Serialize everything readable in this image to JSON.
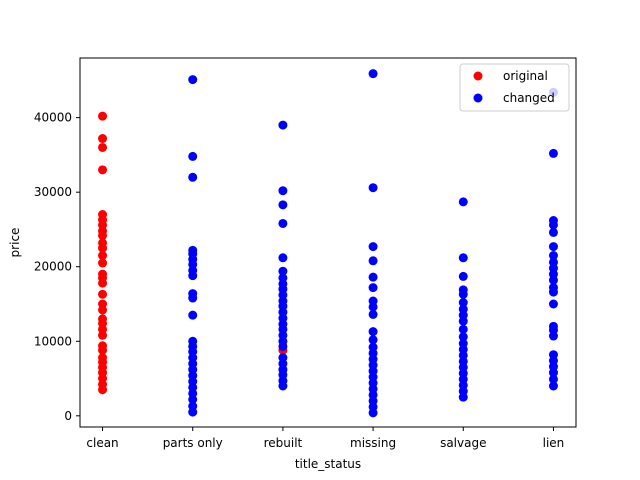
{
  "chart_data": {
    "type": "scatter",
    "xlabel": "title_status",
    "ylabel": "price",
    "categories": [
      "clean",
      "parts only",
      "rebuilt",
      "missing",
      "salvage",
      "lien"
    ],
    "ylim": [
      -1500,
      48000
    ],
    "yticks": [
      0,
      10000,
      20000,
      30000,
      40000
    ],
    "ytick_labels": [
      "0",
      "10000",
      "20000",
      "30000",
      "40000"
    ],
    "grid": false,
    "legend_position": "top-right",
    "series": [
      {
        "name": "original",
        "color": "#ff0000",
        "points": [
          {
            "x": "clean",
            "y": 3500
          },
          {
            "x": "clean",
            "y": 4200
          },
          {
            "x": "clean",
            "y": 5000
          },
          {
            "x": "clean",
            "y": 5800
          },
          {
            "x": "clean",
            "y": 6500
          },
          {
            "x": "clean",
            "y": 7200
          },
          {
            "x": "clean",
            "y": 7800
          },
          {
            "x": "clean",
            "y": 8800
          },
          {
            "x": "clean",
            "y": 9400
          },
          {
            "x": "clean",
            "y": 10800
          },
          {
            "x": "clean",
            "y": 11600
          },
          {
            "x": "clean",
            "y": 12400
          },
          {
            "x": "clean",
            "y": 13000
          },
          {
            "x": "clean",
            "y": 14200
          },
          {
            "x": "clean",
            "y": 15000
          },
          {
            "x": "clean",
            "y": 16300
          },
          {
            "x": "clean",
            "y": 17800
          },
          {
            "x": "clean",
            "y": 18500
          },
          {
            "x": "clean",
            "y": 19000
          },
          {
            "x": "clean",
            "y": 20500
          },
          {
            "x": "clean",
            "y": 21500
          },
          {
            "x": "clean",
            "y": 22500
          },
          {
            "x": "clean",
            "y": 23200
          },
          {
            "x": "clean",
            "y": 24200
          },
          {
            "x": "clean",
            "y": 24800
          },
          {
            "x": "clean",
            "y": 25600
          },
          {
            "x": "clean",
            "y": 26300
          },
          {
            "x": "clean",
            "y": 27000
          },
          {
            "x": "clean",
            "y": 33000
          },
          {
            "x": "clean",
            "y": 36000
          },
          {
            "x": "clean",
            "y": 37200
          },
          {
            "x": "clean",
            "y": 40200
          },
          {
            "x": "rebuilt",
            "y": 8800
          }
        ]
      },
      {
        "name": "changed",
        "color": "#0000ff",
        "points": [
          {
            "x": "parts only",
            "y": 500
          },
          {
            "x": "parts only",
            "y": 1300
          },
          {
            "x": "parts only",
            "y": 2200
          },
          {
            "x": "parts only",
            "y": 3000
          },
          {
            "x": "parts only",
            "y": 3800
          },
          {
            "x": "parts only",
            "y": 4600
          },
          {
            "x": "parts only",
            "y": 5400
          },
          {
            "x": "parts only",
            "y": 6200
          },
          {
            "x": "parts only",
            "y": 7000
          },
          {
            "x": "parts only",
            "y": 7800
          },
          {
            "x": "parts only",
            "y": 8600
          },
          {
            "x": "parts only",
            "y": 9300
          },
          {
            "x": "parts only",
            "y": 10000
          },
          {
            "x": "parts only",
            "y": 13500
          },
          {
            "x": "parts only",
            "y": 15800
          },
          {
            "x": "parts only",
            "y": 16400
          },
          {
            "x": "parts only",
            "y": 18800
          },
          {
            "x": "parts only",
            "y": 19500
          },
          {
            "x": "parts only",
            "y": 20300
          },
          {
            "x": "parts only",
            "y": 21000
          },
          {
            "x": "parts only",
            "y": 21700
          },
          {
            "x": "parts only",
            "y": 22200
          },
          {
            "x": "parts only",
            "y": 32000
          },
          {
            "x": "parts only",
            "y": 34800
          },
          {
            "x": "parts only",
            "y": 45100
          },
          {
            "x": "rebuilt",
            "y": 4000
          },
          {
            "x": "rebuilt",
            "y": 4700
          },
          {
            "x": "rebuilt",
            "y": 5500
          },
          {
            "x": "rebuilt",
            "y": 6200
          },
          {
            "x": "rebuilt",
            "y": 7000
          },
          {
            "x": "rebuilt",
            "y": 7800
          },
          {
            "x": "rebuilt",
            "y": 9300
          },
          {
            "x": "rebuilt",
            "y": 10000
          },
          {
            "x": "rebuilt",
            "y": 10800
          },
          {
            "x": "rebuilt",
            "y": 11600
          },
          {
            "x": "rebuilt",
            "y": 12300
          },
          {
            "x": "rebuilt",
            "y": 13100
          },
          {
            "x": "rebuilt",
            "y": 13900
          },
          {
            "x": "rebuilt",
            "y": 14700
          },
          {
            "x": "rebuilt",
            "y": 15400
          },
          {
            "x": "rebuilt",
            "y": 16200
          },
          {
            "x": "rebuilt",
            "y": 17000
          },
          {
            "x": "rebuilt",
            "y": 17700
          },
          {
            "x": "rebuilt",
            "y": 18500
          },
          {
            "x": "rebuilt",
            "y": 19400
          },
          {
            "x": "rebuilt",
            "y": 21200
          },
          {
            "x": "rebuilt",
            "y": 25800
          },
          {
            "x": "rebuilt",
            "y": 28300
          },
          {
            "x": "rebuilt",
            "y": 30200
          },
          {
            "x": "rebuilt",
            "y": 39000
          },
          {
            "x": "missing",
            "y": 400
          },
          {
            "x": "missing",
            "y": 1200
          },
          {
            "x": "missing",
            "y": 2000
          },
          {
            "x": "missing",
            "y": 2800
          },
          {
            "x": "missing",
            "y": 3600
          },
          {
            "x": "missing",
            "y": 4400
          },
          {
            "x": "missing",
            "y": 5200
          },
          {
            "x": "missing",
            "y": 6000
          },
          {
            "x": "missing",
            "y": 6800
          },
          {
            "x": "missing",
            "y": 7600
          },
          {
            "x": "missing",
            "y": 8400
          },
          {
            "x": "missing",
            "y": 9200
          },
          {
            "x": "missing",
            "y": 10200
          },
          {
            "x": "missing",
            "y": 11300
          },
          {
            "x": "missing",
            "y": 13600
          },
          {
            "x": "missing",
            "y": 14600
          },
          {
            "x": "missing",
            "y": 15400
          },
          {
            "x": "missing",
            "y": 17200
          },
          {
            "x": "missing",
            "y": 18600
          },
          {
            "x": "missing",
            "y": 20800
          },
          {
            "x": "missing",
            "y": 22700
          },
          {
            "x": "missing",
            "y": 30600
          },
          {
            "x": "missing",
            "y": 45900
          },
          {
            "x": "salvage",
            "y": 2500
          },
          {
            "x": "salvage",
            "y": 3300
          },
          {
            "x": "salvage",
            "y": 4100
          },
          {
            "x": "salvage",
            "y": 4900
          },
          {
            "x": "salvage",
            "y": 5700
          },
          {
            "x": "salvage",
            "y": 6500
          },
          {
            "x": "salvage",
            "y": 7300
          },
          {
            "x": "salvage",
            "y": 8100
          },
          {
            "x": "salvage",
            "y": 8900
          },
          {
            "x": "salvage",
            "y": 9700
          },
          {
            "x": "salvage",
            "y": 10600
          },
          {
            "x": "salvage",
            "y": 11600
          },
          {
            "x": "salvage",
            "y": 12700
          },
          {
            "x": "salvage",
            "y": 13500
          },
          {
            "x": "salvage",
            "y": 14300
          },
          {
            "x": "salvage",
            "y": 15200
          },
          {
            "x": "salvage",
            "y": 16300
          },
          {
            "x": "salvage",
            "y": 16900
          },
          {
            "x": "salvage",
            "y": 18700
          },
          {
            "x": "salvage",
            "y": 21200
          },
          {
            "x": "salvage",
            "y": 28700
          },
          {
            "x": "lien",
            "y": 4000
          },
          {
            "x": "lien",
            "y": 4900
          },
          {
            "x": "lien",
            "y": 5800
          },
          {
            "x": "lien",
            "y": 6600
          },
          {
            "x": "lien",
            "y": 7400
          },
          {
            "x": "lien",
            "y": 8200
          },
          {
            "x": "lien",
            "y": 10700
          },
          {
            "x": "lien",
            "y": 11500
          },
          {
            "x": "lien",
            "y": 12000
          },
          {
            "x": "lien",
            "y": 15000
          },
          {
            "x": "lien",
            "y": 16600
          },
          {
            "x": "lien",
            "y": 17200
          },
          {
            "x": "lien",
            "y": 18200
          },
          {
            "x": "lien",
            "y": 19000
          },
          {
            "x": "lien",
            "y": 19800
          },
          {
            "x": "lien",
            "y": 20600
          },
          {
            "x": "lien",
            "y": 21500
          },
          {
            "x": "lien",
            "y": 22700
          },
          {
            "x": "lien",
            "y": 24600
          },
          {
            "x": "lien",
            "y": 25600
          },
          {
            "x": "lien",
            "y": 26200
          },
          {
            "x": "lien",
            "y": 35200
          },
          {
            "x": "lien",
            "y": 43400
          }
        ]
      }
    ]
  }
}
